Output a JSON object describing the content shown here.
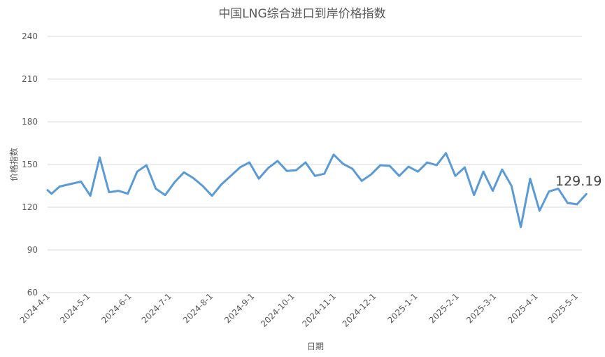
{
  "chart_data": {
    "type": "line",
    "title": "中国LNG综合进口到岸价格指数",
    "xlabel": "日期",
    "ylabel": "价格指数",
    "ylim": [
      60,
      240
    ],
    "yticks": [
      "60",
      "90",
      "120",
      "150",
      "180",
      "210",
      "240"
    ],
    "grid": true,
    "xticks": [
      "2024-4-1",
      "2024-5-1",
      "2024-6-1",
      "2024-7-1",
      "2024-8-1",
      "2024-9-1",
      "2024-10-1",
      "2024-11-1",
      "2024-12-1",
      "2025-1-1",
      "2025-2-1",
      "2025-3-1",
      "2025-4-1",
      "2025-5-1"
    ],
    "last_value_label": "129.19",
    "series": [
      {
        "color": "#5b9bd5",
        "points": [
          [
            "2024-04-01",
            132
          ],
          [
            "2024-04-04",
            129.5
          ],
          [
            "2024-04-10",
            134.5
          ],
          [
            "2024-04-19",
            136.5
          ],
          [
            "2024-04-26",
            138
          ],
          [
            "2024-05-03",
            128
          ],
          [
            "2024-05-10",
            155
          ],
          [
            "2024-05-17",
            130.5
          ],
          [
            "2024-05-24",
            131.5
          ],
          [
            "2024-05-31",
            129.5
          ],
          [
            "2024-06-07",
            145
          ],
          [
            "2024-06-14",
            149.5
          ],
          [
            "2024-06-21",
            133
          ],
          [
            "2024-06-28",
            128.5
          ],
          [
            "2024-07-05",
            137.5
          ],
          [
            "2024-07-12",
            144.5
          ],
          [
            "2024-07-19",
            140.5
          ],
          [
            "2024-07-26",
            135
          ],
          [
            "2024-08-02",
            128
          ],
          [
            "2024-08-09",
            136
          ],
          [
            "2024-08-16",
            142
          ],
          [
            "2024-08-23",
            148
          ],
          [
            "2024-08-30",
            151.5
          ],
          [
            "2024-09-06",
            140
          ],
          [
            "2024-09-13",
            147.5
          ],
          [
            "2024-09-20",
            152.5
          ],
          [
            "2024-09-27",
            145.5
          ],
          [
            "2024-10-04",
            146
          ],
          [
            "2024-10-11",
            151.5
          ],
          [
            "2024-10-18",
            142
          ],
          [
            "2024-10-25",
            143.5
          ],
          [
            "2024-11-01",
            157
          ],
          [
            "2024-11-08",
            150.5
          ],
          [
            "2024-11-15",
            147
          ],
          [
            "2024-11-22",
            138.5
          ],
          [
            "2024-11-29",
            143
          ],
          [
            "2024-12-06",
            149.5
          ],
          [
            "2024-12-13",
            149
          ],
          [
            "2024-12-20",
            142
          ],
          [
            "2024-12-27",
            148.5
          ],
          [
            "2025-01-03",
            145
          ],
          [
            "2025-01-10",
            151.5
          ],
          [
            "2025-01-17",
            149.5
          ],
          [
            "2025-01-24",
            158
          ],
          [
            "2025-01-31",
            142
          ],
          [
            "2025-02-07",
            148
          ],
          [
            "2025-02-14",
            128.5
          ],
          [
            "2025-02-21",
            145
          ],
          [
            "2025-02-28",
            131.5
          ],
          [
            "2025-03-07",
            146.5
          ],
          [
            "2025-03-14",
            135
          ],
          [
            "2025-03-21",
            106
          ],
          [
            "2025-03-28",
            140
          ],
          [
            "2025-04-04",
            117.5
          ],
          [
            "2025-04-11",
            131
          ],
          [
            "2025-04-18",
            133
          ],
          [
            "2025-04-25",
            123
          ],
          [
            "2025-05-02",
            122
          ],
          [
            "2025-05-09",
            129.19
          ]
        ]
      }
    ]
  }
}
